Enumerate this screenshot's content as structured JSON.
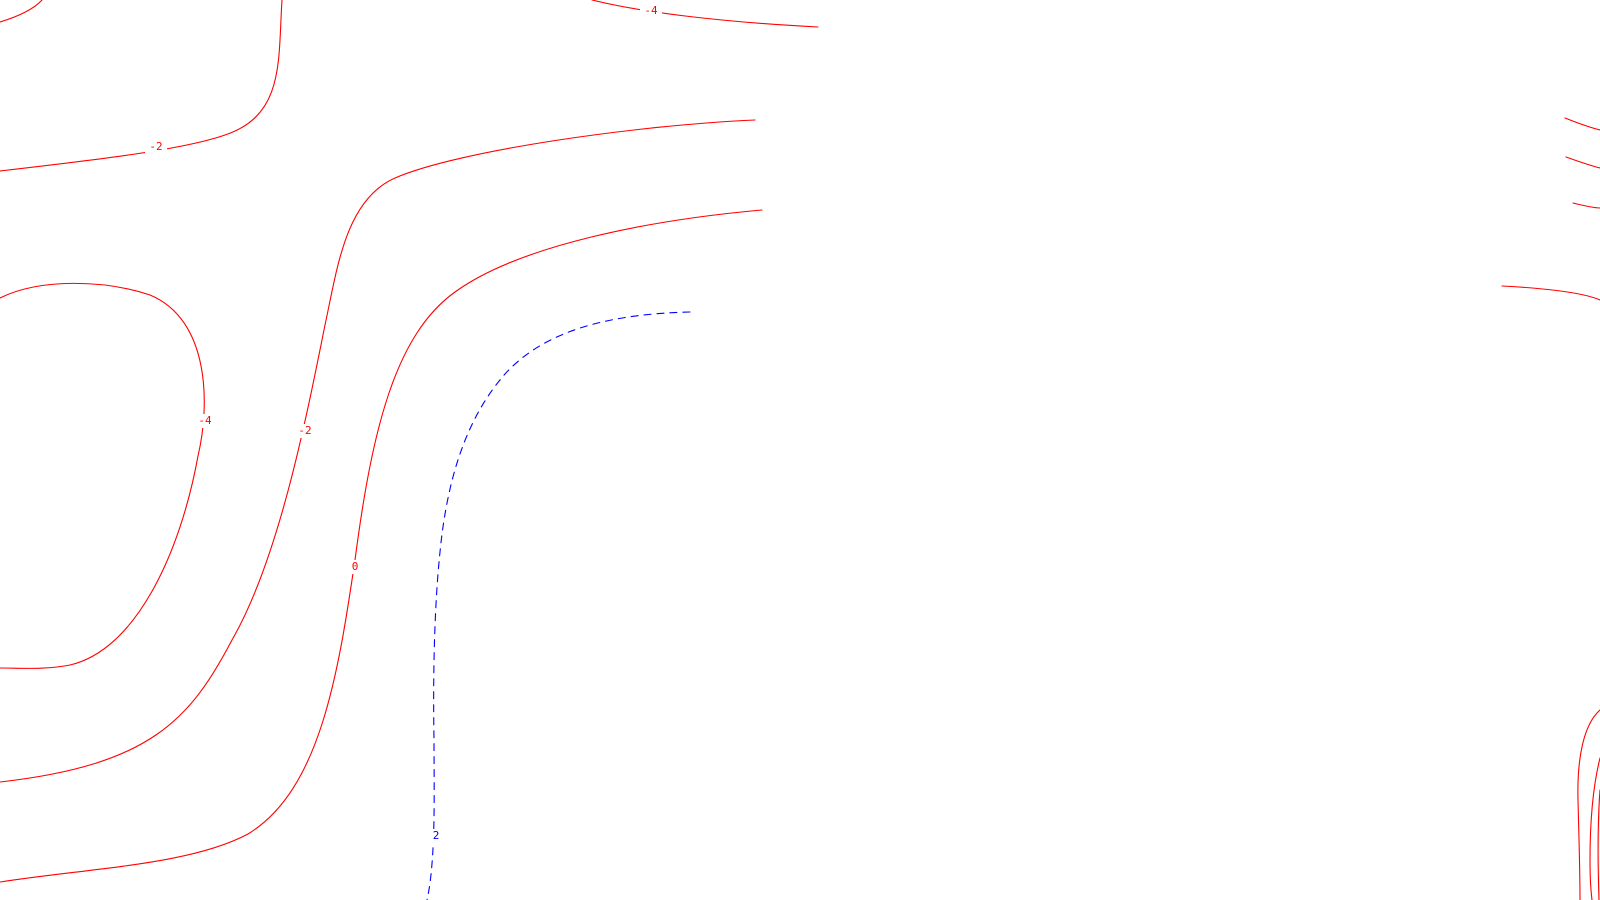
{
  "colors": {
    "background": "#ffffff",
    "negative_contour": "#ff0000",
    "positive_contour": "#0000ff"
  },
  "contour_labels": {
    "top_neg4": "-4",
    "upper_left_neg2": "-2",
    "closed_neg4": "-4",
    "middle_neg2": "-2",
    "zero": "0",
    "dashed_2": "2"
  }
}
